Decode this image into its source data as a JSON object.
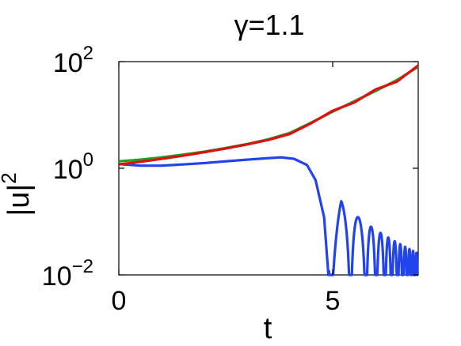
{
  "chart_data": {
    "type": "line",
    "title": "γ=1.1",
    "xlabel": "t",
    "ylabel": "|u|",
    "ylabel_exponent": "2",
    "xlim": [
      0,
      7
    ],
    "ylim": [
      0.01,
      100
    ],
    "yscale": "log",
    "grid": false,
    "x_ticks": [
      {
        "value": 0,
        "label": "0"
      },
      {
        "value": 5,
        "label": "5"
      }
    ],
    "y_ticks": [
      {
        "value": 0.01,
        "base": "10",
        "exp": "−2"
      },
      {
        "value": 1,
        "base": "10",
        "exp": "0"
      },
      {
        "value": 100,
        "base": "10",
        "exp": "2"
      }
    ],
    "series": [
      {
        "color": "#22a022",
        "points": [
          [
            0,
            1.35
          ],
          [
            0.5,
            1.45
          ],
          [
            1,
            1.6
          ],
          [
            1.5,
            1.8
          ],
          [
            2,
            2.05
          ],
          [
            2.5,
            2.4
          ],
          [
            3,
            2.85
          ],
          [
            3.5,
            3.5
          ],
          [
            4,
            4.6
          ],
          [
            4.5,
            7.2
          ],
          [
            5,
            11.5
          ],
          [
            5.5,
            18
          ],
          [
            6,
            28
          ],
          [
            6.5,
            45
          ],
          [
            7,
            80
          ]
        ]
      },
      {
        "color": "#e01010",
        "points": [
          [
            0,
            1.18
          ],
          [
            0.5,
            1.32
          ],
          [
            1,
            1.5
          ],
          [
            1.5,
            1.72
          ],
          [
            2,
            2.0
          ],
          [
            2.5,
            2.35
          ],
          [
            3,
            2.8
          ],
          [
            3.5,
            3.4
          ],
          [
            4,
            4.4
          ],
          [
            4.5,
            7.0
          ],
          [
            5,
            12
          ],
          [
            5.5,
            17
          ],
          [
            6,
            30
          ],
          [
            6.5,
            42
          ],
          [
            7,
            85
          ]
        ]
      },
      {
        "color": "#2244ee",
        "envelope": [
          [
            0,
            1.2
          ],
          [
            0.5,
            1.12
          ],
          [
            1,
            1.12
          ],
          [
            1.5,
            1.18
          ],
          [
            2,
            1.25
          ],
          [
            2.5,
            1.35
          ],
          [
            3,
            1.45
          ],
          [
            3.5,
            1.55
          ],
          [
            3.8,
            1.6
          ],
          [
            4.1,
            1.5
          ],
          [
            4.4,
            1.15
          ],
          [
            4.6,
            0.6
          ],
          [
            4.8,
            0.12
          ],
          [
            4.9,
            0.01
          ],
          [
            5.2,
            0.25
          ],
          [
            5.6,
            0.12
          ],
          [
            6.0,
            0.07
          ],
          [
            6.4,
            0.045
          ],
          [
            7.0,
            0.025
          ]
        ],
        "zeros": [
          4.92,
          5.42,
          5.78,
          6.02,
          6.22,
          6.38,
          6.52,
          6.64,
          6.75,
          6.84,
          6.92,
          7.0
        ]
      }
    ]
  }
}
